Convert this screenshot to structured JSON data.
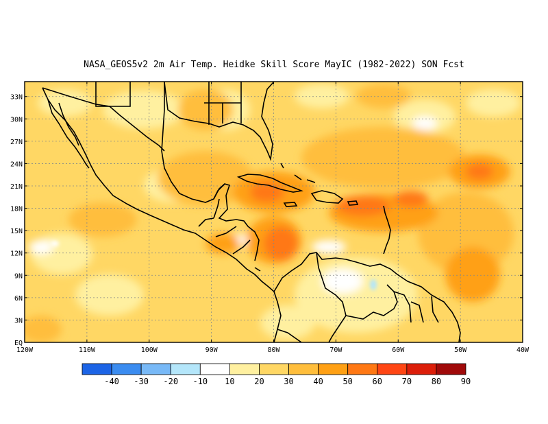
{
  "title": "NASA_GEOS5v2  2m Air Temp. Heidke Skill Score MayIC (1982-2022) SON Fcst",
  "map": {
    "lon_range": [
      -120,
      -40
    ],
    "lat_range": [
      0,
      35
    ],
    "lat_ticks": [
      "33N",
      "30N",
      "27N",
      "24N",
      "21N",
      "18N",
      "15N",
      "12N",
      "9N",
      "6N",
      "3N",
      "EQ"
    ],
    "lon_ticks": [
      "120W",
      "110W",
      "100W",
      "90W",
      "80W",
      "70W",
      "60W",
      "50W",
      "40W"
    ],
    "gridlines": "dotted"
  },
  "colorbar": {
    "labels": [
      "-40",
      "-30",
      "-20",
      "-10",
      "10",
      "20",
      "30",
      "40",
      "50",
      "60",
      "70",
      "80",
      "90"
    ],
    "colors": [
      "#1c64e6",
      "#3b8cf0",
      "#78b9f7",
      "#b4e6fa",
      "#ffffff",
      "#fff0a0",
      "#ffd764",
      "#ffbe3c",
      "#ffa014",
      "#ff7814",
      "#ff4614",
      "#dc1e0a",
      "#a00a0a"
    ]
  },
  "field_colors": {
    "light": "#fff0a0",
    "mid": "#ffd764",
    "orange": "#ffbe3c",
    "dark_orange": "#ffa014",
    "red_orange": "#ff7814",
    "white": "#ffffff",
    "cyan": "#b4e6fa"
  }
}
